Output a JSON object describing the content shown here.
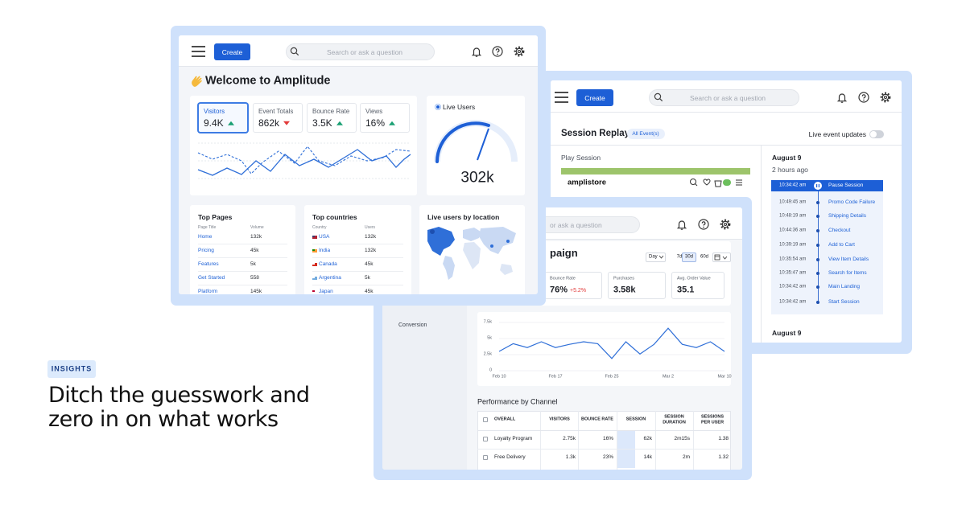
{
  "insights": {
    "badge": "INSIGHTS",
    "headline": "Ditch the guesswork and zero in on what works"
  },
  "welcome": {
    "create": "Create",
    "search": "Search or ask a question",
    "title": "Welcome to Amplitude",
    "metrics": [
      {
        "label": "Visitors",
        "value": "9.4K",
        "trend": "up"
      },
      {
        "label": "Event Totals",
        "value": "862k",
        "trend": "down"
      },
      {
        "label": "Bounce Rate",
        "value": "3.5K",
        "trend": "up"
      },
      {
        "label": "Views",
        "value": "16%",
        "trend": "up"
      }
    ],
    "selected_metric": 0,
    "live_users": {
      "label": "Live Users",
      "value": "302k"
    },
    "top_pages": {
      "title": "Top Pages",
      "columns": [
        "Page Title",
        "Volume"
      ],
      "rows": [
        [
          "Home",
          "132k"
        ],
        [
          "Pricing",
          "45k"
        ],
        [
          "Features",
          "5k"
        ],
        [
          "Get Started",
          "558"
        ],
        [
          "Platform",
          "145k"
        ]
      ]
    },
    "top_countries": {
      "title": "Top countries",
      "columns": [
        "Country",
        "Users"
      ],
      "rows": [
        [
          "USA",
          "132k"
        ],
        [
          "India",
          "132k"
        ],
        [
          "Canada",
          "45k"
        ],
        [
          "Argentina",
          "5k"
        ],
        [
          "Japan",
          "45k"
        ]
      ]
    },
    "location_title": "Live users by location"
  },
  "replay": {
    "create": "Create",
    "search": "Search or ask a question",
    "title": "Session Replay",
    "filter": "All Event(s)",
    "live_toggle": "Live event updates",
    "play": "Play Session",
    "store": "amplistore",
    "date": "August 9",
    "ago": "2 hours ago",
    "events": [
      {
        "time": "10:34:42 am",
        "name": "Pause Session"
      },
      {
        "time": "10:49:45 am",
        "name": "Promo Code Failure"
      },
      {
        "time": "10:48:19 am",
        "name": "Shipping Details"
      },
      {
        "time": "10:44:36 am",
        "name": "Checkout"
      },
      {
        "time": "10:39:19 am",
        "name": "Add to Cart"
      },
      {
        "time": "10:35:54 am",
        "name": "View Item Details"
      },
      {
        "time": "10:35:47 am",
        "name": "Search for Items"
      },
      {
        "time": "10:34:42 am",
        "name": "Main Landing"
      },
      {
        "time": "10:34:42 am",
        "name": "Start Session"
      }
    ],
    "selected_event": 0,
    "date_next": "August 9"
  },
  "campaign": {
    "search": "or ask a question",
    "title": "paign",
    "range": {
      "unit": "Day",
      "options": [
        "7d",
        "30d",
        "60d"
      ],
      "selected": 1
    },
    "metrics": [
      {
        "label": "Bounce Rate",
        "value": "76%",
        "change": "+5.2%"
      },
      {
        "label": "Purchases",
        "value": "3.58k"
      },
      {
        "label": "Avg. Order Value",
        "value": "35.1"
      }
    ],
    "sidebar": "Conversion",
    "chart_data": {
      "type": "line",
      "categories": [
        "Feb 10",
        null,
        null,
        null,
        "Feb 17",
        null,
        null,
        null,
        "Feb 25",
        null,
        null,
        null,
        "Mar 2",
        null,
        null,
        null,
        "Mar 10"
      ],
      "values": [
        3000,
        4200,
        3600,
        4500,
        3600,
        4100,
        4500,
        4200,
        1900,
        4500,
        2600,
        4100,
        6600,
        4100,
        3600,
        4500,
        3000
      ],
      "color": "#2f6fd8",
      "ylim": [
        0,
        7500
      ],
      "yticks": [
        0,
        {
          "value": 2500,
          "label": "2.5k"
        },
        {
          "value": 5000,
          "label": "5k"
        },
        {
          "value": 7500,
          "label": "7.5k"
        }
      ],
      "grid": true
    },
    "table": {
      "title": "Performance by Channel",
      "columns": [
        "OVERALL",
        "VISITORS",
        "BOUNCE RATE",
        "SESSION",
        "SESSION DURATION",
        "SESSIONS PER USER"
      ],
      "rows": [
        [
          "Loyalty Program",
          "2.75k",
          "16%",
          "62k",
          "2m15s",
          "1.38"
        ],
        [
          "Free Delivery",
          "1.3k",
          "23%",
          "14k",
          "2m",
          "1.32"
        ]
      ]
    }
  }
}
